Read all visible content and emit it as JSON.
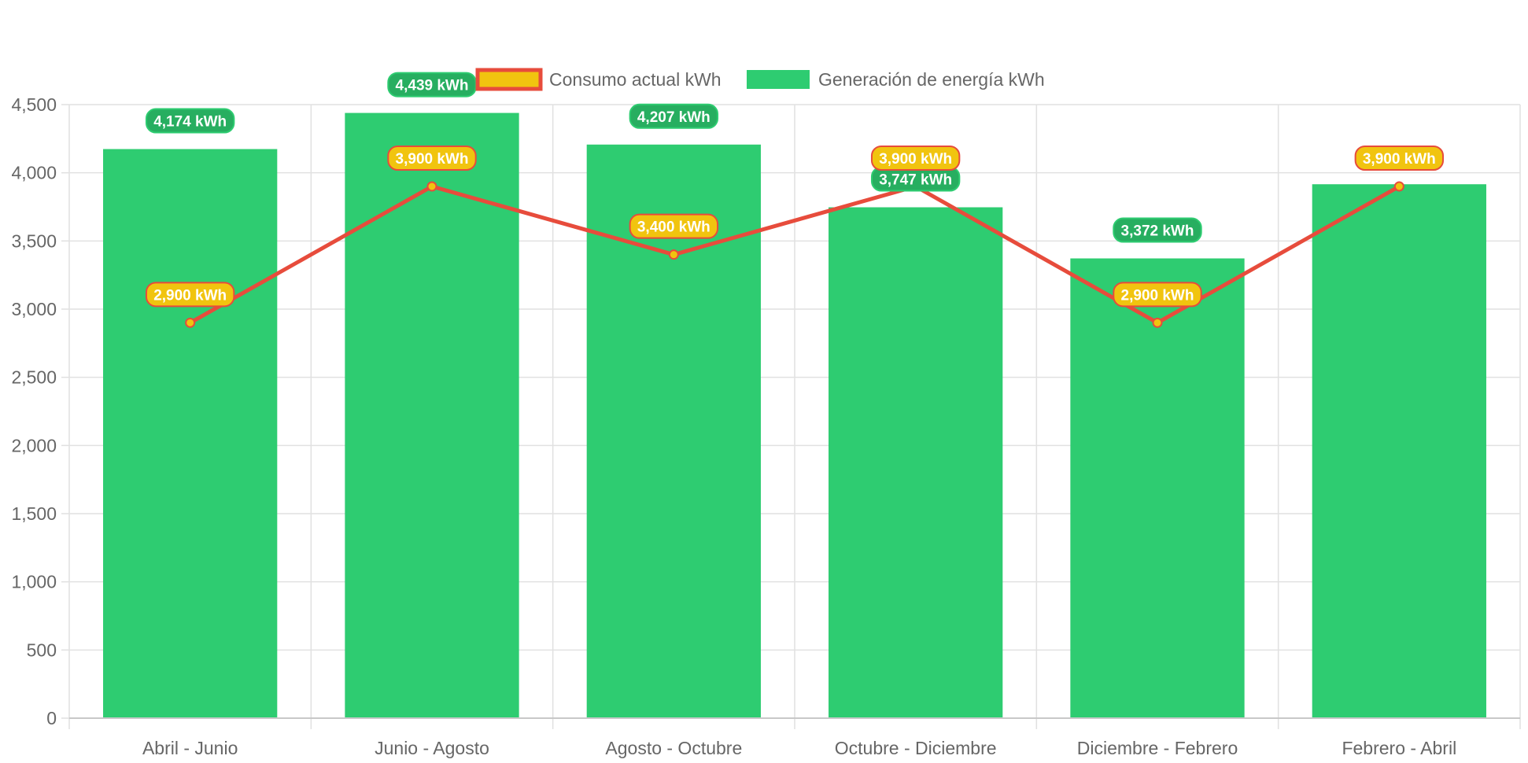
{
  "colors": {
    "bar_fill": "#2ecc71",
    "bar_label_bg": "#27ae60",
    "line_stroke": "#e74c3c",
    "point_fill": "#f1c40f",
    "grid": "#e1e1e1",
    "tick_text": "#666666"
  },
  "chart_data": {
    "type": "bar",
    "categories": [
      "Abril - Junio",
      "Junio - Agosto",
      "Agosto - Octubre",
      "Octubre - Diciembre",
      "Diciembre - Febrero",
      "Febrero - Abril"
    ],
    "series": [
      {
        "name": "Consumo actual kWh",
        "type": "line",
        "values": [
          2900,
          3900,
          3400,
          3900,
          2900,
          3900
        ],
        "labels": [
          "2,900 kWh",
          "3,900 kWh",
          "3,400 kWh",
          "3,900 kWh",
          "2,900 kWh",
          "3,900 kWh"
        ]
      },
      {
        "name": "Generación de energía kWh",
        "type": "bar",
        "values": [
          4174,
          4439,
          4207,
          3747,
          3372,
          3916
        ],
        "labels": [
          "4,174 kWh",
          "4,439 kWh",
          "4,207 kWh",
          "3,747 kWh",
          "3,372 kWh",
          ""
        ]
      }
    ],
    "ylim": [
      0,
      4500
    ],
    "yticks": [
      0,
      500,
      1000,
      1500,
      2000,
      2500,
      3000,
      3500,
      4000,
      4500
    ],
    "ytick_labels": [
      "0",
      "500",
      "1,000",
      "1,500",
      "2,000",
      "2,500",
      "3,000",
      "3,500",
      "4,000",
      "4,500"
    ],
    "grid": true,
    "legend_position": "top"
  }
}
